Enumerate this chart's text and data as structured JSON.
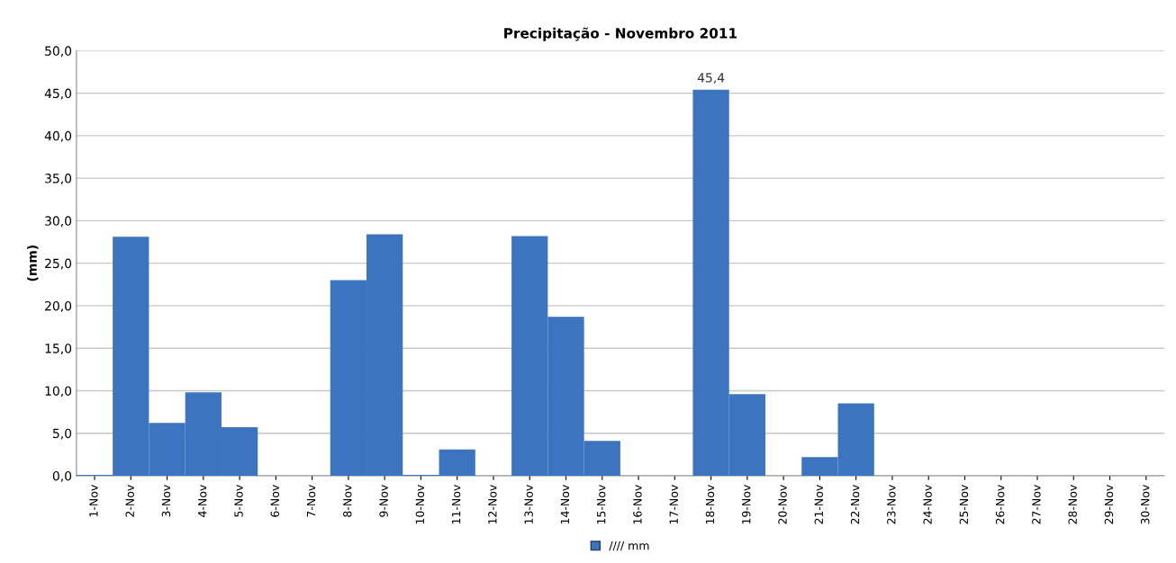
{
  "chart_data": {
    "type": "bar",
    "title": "Precipitação - Novembro 2011",
    "ylabel": "(mm)",
    "categories": [
      "1-Nov",
      "2-Nov",
      "3-Nov",
      "4-Nov",
      "5-Nov",
      "6-Nov",
      "7-Nov",
      "8-Nov",
      "9-Nov",
      "10-Nov",
      "11-Nov",
      "12-Nov",
      "13-Nov",
      "14-Nov",
      "15-Nov",
      "16-Nov",
      "17-Nov",
      "18-Nov",
      "19-Nov",
      "20-Nov",
      "21-Nov",
      "22-Nov",
      "23-Nov",
      "24-Nov",
      "25-Nov",
      "26-Nov",
      "27-Nov",
      "28-Nov",
      "29-Nov",
      "30-Nov"
    ],
    "series": [
      {
        "name": "//// mm",
        "color": "#3d74bf",
        "values": [
          0.1,
          28.1,
          6.2,
          9.8,
          5.7,
          0,
          0,
          23.0,
          28.4,
          0.1,
          3.1,
          0,
          28.2,
          18.7,
          4.1,
          0,
          0,
          45.4,
          9.6,
          0,
          2.2,
          8.5,
          0,
          0,
          0,
          0,
          0,
          0,
          0,
          0
        ],
        "value_labels": [
          null,
          null,
          null,
          null,
          null,
          null,
          null,
          null,
          null,
          null,
          null,
          null,
          null,
          null,
          null,
          null,
          null,
          "45,4",
          null,
          null,
          null,
          null,
          null,
          null,
          null,
          null,
          null,
          null,
          null,
          null
        ]
      }
    ],
    "ylim": [
      0,
      50
    ],
    "yticks": [
      {
        "value": 0,
        "label": "0,0"
      },
      {
        "value": 5,
        "label": "5,0"
      },
      {
        "value": 10,
        "label": "10,0"
      },
      {
        "value": 15,
        "label": "15,0"
      },
      {
        "value": 20,
        "label": "20,0"
      },
      {
        "value": 25,
        "label": "25,0"
      },
      {
        "value": 30,
        "label": "30,0"
      },
      {
        "value": 35,
        "label": "35,0"
      },
      {
        "value": 40,
        "label": "40,0"
      },
      {
        "value": 45,
        "label": "45,0"
      },
      {
        "value": 50,
        "label": "50,0"
      }
    ],
    "grid": "y",
    "legend": "bottom"
  }
}
